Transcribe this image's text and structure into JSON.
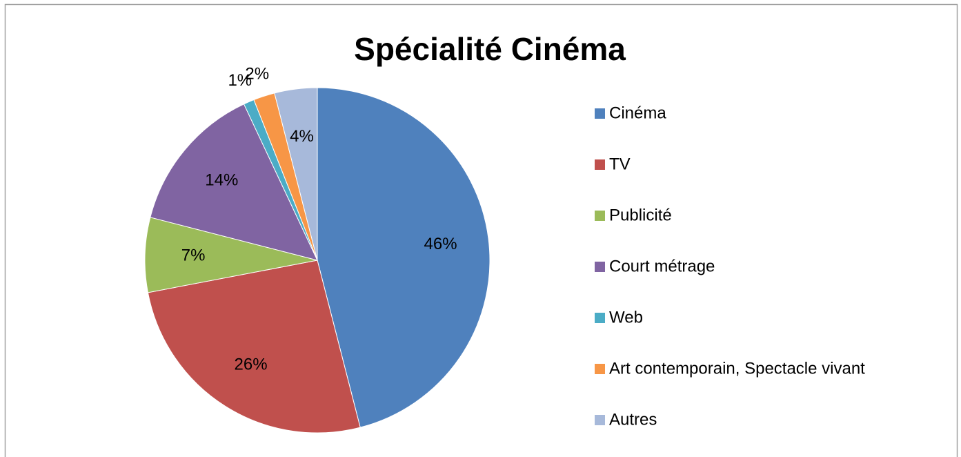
{
  "chart_data": {
    "type": "pie",
    "title": "Spécialité Cinéma",
    "categories": [
      "Cinéma",
      "TV",
      "Publicité",
      "Court métrage",
      "Web",
      "Art contemporain, Spectacle vivant",
      "Autres"
    ],
    "values": [
      46,
      26,
      7,
      14,
      1,
      2,
      4
    ],
    "value_labels": [
      "46%",
      "26%",
      "7%",
      "14%",
      "1%",
      "2%",
      "4%"
    ],
    "colors": [
      "#4f81bd",
      "#c0504d",
      "#9bbb59",
      "#8064a2",
      "#4bacc6",
      "#f79646",
      "#a7b9da"
    ],
    "legend": "right"
  }
}
